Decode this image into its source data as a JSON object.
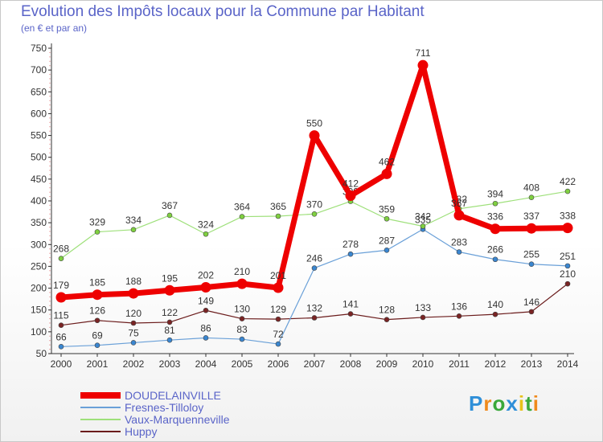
{
  "title": "Evolution des Impôts locaux pour la Commune par Habitant",
  "subtitle": "(en € et par an)",
  "logo": "Proxiti",
  "colors": {
    "title": "#5a64c8",
    "axis": "#333333",
    "grid_tick": "#e09090",
    "label": "#333333"
  },
  "chart_data": {
    "type": "line",
    "title": "Evolution des Impôts locaux pour la Commune par Habitant",
    "subtitle": "(en € et par an)",
    "xlabel": "",
    "ylabel": "",
    "ylim": [
      50,
      750
    ],
    "yticks": [
      50,
      100,
      150,
      200,
      250,
      300,
      350,
      400,
      450,
      500,
      550,
      600,
      650,
      700,
      750
    ],
    "categories": [
      "2000",
      "2001",
      "2002",
      "2003",
      "2004",
      "2005",
      "2006",
      "2007",
      "2008",
      "2009",
      "2010",
      "2011",
      "2012",
      "2013",
      "2014"
    ],
    "legend_position": "bottom-left",
    "series": [
      {
        "name": "Huppy",
        "color": "#6b1c1c",
        "marker": "#7a2424",
        "width": 1.2,
        "values": [
          115,
          126,
          120,
          122,
          149,
          130,
          129,
          132,
          141,
          128,
          133,
          136,
          140,
          146,
          210
        ]
      },
      {
        "name": "Fresnes-Tilloloy",
        "color": "#6aa0d8",
        "marker": "#3a86d0",
        "width": 1.2,
        "values": [
          66,
          69,
          75,
          81,
          86,
          83,
          72,
          246,
          278,
          287,
          335,
          283,
          266,
          255,
          251
        ]
      },
      {
        "name": "Vaux-Marquenneville",
        "color": "#9ee07a",
        "marker": "#7fd040",
        "width": 1.2,
        "values": [
          268,
          329,
          334,
          367,
          324,
          364,
          365,
          370,
          399,
          359,
          342,
          382,
          394,
          408,
          422
        ]
      },
      {
        "name": "DOUDELAINVILLE",
        "color": "#ee0000",
        "marker": "#ee0000",
        "width": 7,
        "values": [
          179,
          185,
          188,
          195,
          202,
          210,
          201,
          550,
          412,
          462,
          711,
          367,
          336,
          337,
          338
        ]
      }
    ],
    "legend_order": [
      "DOUDELAINVILLE",
      "Fresnes-Tilloloy",
      "Vaux-Marquenneville",
      "Huppy"
    ]
  }
}
